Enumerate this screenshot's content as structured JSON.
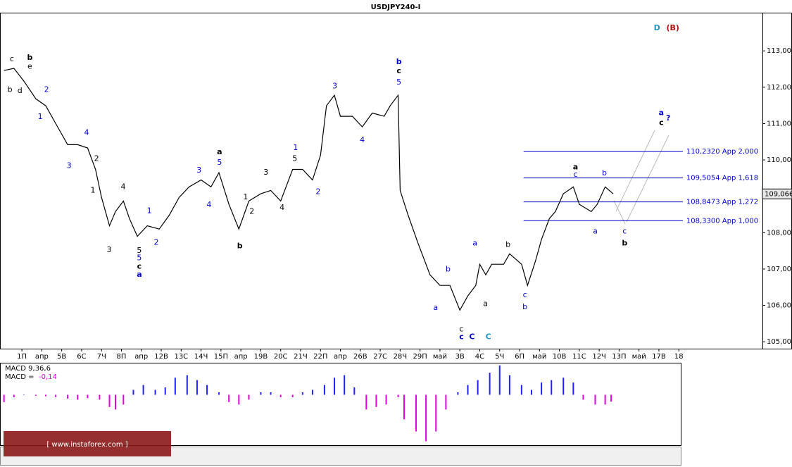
{
  "chart_data": [
    {
      "type": "line",
      "title": "USDJPY240-I",
      "x": [
        -0.9,
        -0.4,
        0.1,
        0.7,
        1.2,
        1.7,
        2.3,
        2.8,
        3.3,
        3.7,
        4.0,
        4.4,
        4.7,
        5.1,
        5.4,
        5.8,
        6.3,
        6.9,
        7.4,
        7.9,
        8.4,
        9.0,
        9.5,
        9.9,
        10.4,
        10.9,
        11.4,
        12.0,
        12.5,
        13.0,
        13.6,
        14.1,
        14.6,
        15.0,
        15.3,
        15.7,
        16.0,
        16.6,
        17.1,
        17.6,
        18.2,
        18.5,
        18.9,
        19.0,
        19.4,
        19.9,
        20.5,
        21.0,
        21.5,
        22.0,
        22.4,
        22.8,
        23.0,
        23.3,
        23.6,
        24.2,
        24.5,
        25.1,
        25.4,
        25.8,
        26.1,
        26.5,
        26.8,
        27.2,
        27.7,
        28.0,
        28.6,
        28.9,
        29.3,
        29.7
      ],
      "series": [
        {
          "name": "USDJPY240-I",
          "color": "#000000",
          "values": [
            112.46,
            112.52,
            112.17,
            111.68,
            111.49,
            111.0,
            110.42,
            110.42,
            110.33,
            109.74,
            108.97,
            108.19,
            108.58,
            108.87,
            108.39,
            107.9,
            108.19,
            108.1,
            108.48,
            108.97,
            109.26,
            109.45,
            109.26,
            109.65,
            108.78,
            108.1,
            108.87,
            109.07,
            109.16,
            108.87,
            109.74,
            109.74,
            109.45,
            110.13,
            111.49,
            111.78,
            111.2,
            111.2,
            110.91,
            111.29,
            111.2,
            111.49,
            111.78,
            109.16,
            108.48,
            107.71,
            106.84,
            106.55,
            106.55,
            105.87,
            106.26,
            106.55,
            107.13,
            106.84,
            107.13,
            107.13,
            107.42,
            107.13,
            106.55,
            107.22,
            107.81,
            108.39,
            108.58,
            109.07,
            109.26,
            108.78,
            108.58,
            108.78,
            109.26,
            109.07
          ]
        }
      ],
      "xlim": [
        -1.1,
        37.2
      ],
      "xticks": [
        {
          "value": 0,
          "label": "1П"
        },
        {
          "value": 1,
          "label": "апр"
        },
        {
          "value": 2,
          "label": "5В"
        },
        {
          "value": 3,
          "label": "6С"
        },
        {
          "value": 4,
          "label": "7Ч"
        },
        {
          "value": 5,
          "label": "8П"
        },
        {
          "value": 6,
          "label": "апр"
        },
        {
          "value": 7,
          "label": "12В"
        },
        {
          "value": 8,
          "label": "13С"
        },
        {
          "value": 9,
          "label": "14Ч"
        },
        {
          "value": 10,
          "label": "15П"
        },
        {
          "value": 11,
          "label": "апр"
        },
        {
          "value": 12,
          "label": "19В"
        },
        {
          "value": 13,
          "label": "20С"
        },
        {
          "value": 14,
          "label": "21Ч"
        },
        {
          "value": 15,
          "label": "22П"
        },
        {
          "value": 16,
          "label": "апр"
        },
        {
          "value": 17,
          "label": "26В"
        },
        {
          "value": 18,
          "label": "27С"
        },
        {
          "value": 19,
          "label": "28Ч"
        },
        {
          "value": 20,
          "label": "29П"
        },
        {
          "value": 21,
          "label": "май"
        },
        {
          "value": 22,
          "label": "3В"
        },
        {
          "value": 23,
          "label": "4С"
        },
        {
          "value": 24,
          "label": "5Ч"
        },
        {
          "value": 25,
          "label": "6П"
        },
        {
          "value": 26,
          "label": "май"
        },
        {
          "value": 27,
          "label": "10В"
        },
        {
          "value": 28,
          "label": "11С"
        },
        {
          "value": 29,
          "label": "12Ч"
        },
        {
          "value": 30,
          "label": "13П"
        },
        {
          "value": 31,
          "label": "май"
        },
        {
          "value": 32,
          "label": "17В"
        },
        {
          "value": 33,
          "label": "18"
        }
      ],
      "ylim": [
        104.81,
        114.05
      ],
      "yticks": [
        {
          "value": 105,
          "label": "105,000"
        },
        {
          "value": 106,
          "label": "106,000"
        },
        {
          "value": 107,
          "label": "107,000"
        },
        {
          "value": 108,
          "label": "108,000"
        },
        {
          "value": 109,
          "label": "109,000"
        },
        {
          "value": 110,
          "label": "110,000"
        },
        {
          "value": 111,
          "label": "111,000"
        },
        {
          "value": 112,
          "label": "112,000"
        },
        {
          "value": 113,
          "label": "113,000"
        }
      ],
      "last_price": {
        "value": 109.066,
        "label": "109,066"
      },
      "levels": {
        "color": "#0000cc",
        "x_start": 25.2,
        "x_end": 33.2,
        "items": [
          {
            "value": 110.232,
            "label": "110,2320 App 2,000"
          },
          {
            "value": 109.5054,
            "label": "109,5054 App 1,618"
          },
          {
            "value": 108.8473,
            "label": "108,8473 App 1,272"
          },
          {
            "value": 108.33,
            "label": "108,3300 App 1,000"
          }
        ]
      },
      "annotations": [
        {
          "text": "c",
          "x": -0.5,
          "y": 112.77,
          "color": "#000000",
          "bold": false
        },
        {
          "text": "b",
          "x": 0.4,
          "y": 112.81,
          "color": "#000000",
          "bold": true
        },
        {
          "text": "e",
          "x": 0.4,
          "y": 112.57,
          "color": "#000000",
          "bold": false
        },
        {
          "text": "b",
          "x": -0.6,
          "y": 111.93,
          "color": "#000000",
          "bold": false
        },
        {
          "text": "d",
          "x": -0.1,
          "y": 111.9,
          "color": "#000000",
          "bold": false
        },
        {
          "text": "2",
          "x": 1.24,
          "y": 111.93,
          "color": "#0000cc",
          "bold": false
        },
        {
          "text": "1",
          "x": 0.92,
          "y": 111.18,
          "color": "#0000cc",
          "bold": false
        },
        {
          "text": "4",
          "x": 3.25,
          "y": 110.75,
          "color": "#0000cc",
          "bold": false
        },
        {
          "text": "3",
          "x": 2.37,
          "y": 109.84,
          "color": "#0000cc",
          "bold": false
        },
        {
          "text": "2",
          "x": 3.75,
          "y": 110.03,
          "color": "#000000",
          "bold": false
        },
        {
          "text": "1",
          "x": 3.57,
          "y": 109.16,
          "color": "#000000",
          "bold": false
        },
        {
          "text": "4",
          "x": 5.09,
          "y": 109.26,
          "color": "#000000",
          "bold": false
        },
        {
          "text": "3",
          "x": 4.38,
          "y": 107.52,
          "color": "#000000",
          "bold": false
        },
        {
          "text": "1",
          "x": 6.4,
          "y": 108.6,
          "color": "#0000cc",
          "bold": false
        },
        {
          "text": "2",
          "x": 6.75,
          "y": 107.73,
          "color": "#0000cc",
          "bold": false
        },
        {
          "text": "5",
          "x": 5.9,
          "y": 107.5,
          "color": "#000000",
          "bold": false
        },
        {
          "text": "5",
          "x": 5.9,
          "y": 107.3,
          "color": "#0000cc",
          "bold": false
        },
        {
          "text": "c",
          "x": 5.9,
          "y": 107.07,
          "color": "#000000",
          "bold": true
        },
        {
          "text": "a",
          "x": 5.9,
          "y": 106.84,
          "color": "#0000cc",
          "bold": true
        },
        {
          "text": "a",
          "x": 9.93,
          "y": 110.21,
          "color": "#000000",
          "bold": true
        },
        {
          "text": "5",
          "x": 9.93,
          "y": 109.92,
          "color": "#0000cc",
          "bold": false
        },
        {
          "text": "3",
          "x": 8.9,
          "y": 109.71,
          "color": "#0000cc",
          "bold": false
        },
        {
          "text": "4",
          "x": 9.4,
          "y": 108.76,
          "color": "#0000cc",
          "bold": false
        },
        {
          "text": "b",
          "x": 10.95,
          "y": 107.63,
          "color": "#000000",
          "bold": true
        },
        {
          "text": "1",
          "x": 11.24,
          "y": 108.97,
          "color": "#000000",
          "bold": false
        },
        {
          "text": "2",
          "x": 11.55,
          "y": 108.58,
          "color": "#000000",
          "bold": false
        },
        {
          "text": "3",
          "x": 12.26,
          "y": 109.65,
          "color": "#000000",
          "bold": false
        },
        {
          "text": "4",
          "x": 13.07,
          "y": 108.68,
          "color": "#000000",
          "bold": false
        },
        {
          "text": "5",
          "x": 13.71,
          "y": 110.03,
          "color": "#000000",
          "bold": false
        },
        {
          "text": "1",
          "x": 13.75,
          "y": 110.33,
          "color": "#0000cc",
          "bold": false
        },
        {
          "text": "2",
          "x": 14.88,
          "y": 109.12,
          "color": "#0000cc",
          "bold": false
        },
        {
          "text": "3",
          "x": 15.72,
          "y": 112.03,
          "color": "#0000cc",
          "bold": false
        },
        {
          "text": "4",
          "x": 17.1,
          "y": 110.54,
          "color": "#0000cc",
          "bold": false
        },
        {
          "text": "b",
          "x": 18.94,
          "y": 112.69,
          "color": "#0000cc",
          "bold": true
        },
        {
          "text": "c",
          "x": 18.94,
          "y": 112.44,
          "color": "#000000",
          "bold": true
        },
        {
          "text": "5",
          "x": 18.94,
          "y": 112.13,
          "color": "#0000cc",
          "bold": false
        },
        {
          "text": "a",
          "x": 20.78,
          "y": 105.93,
          "color": "#0000cc",
          "bold": false
        },
        {
          "text": "b",
          "x": 21.41,
          "y": 106.99,
          "color": "#0000cc",
          "bold": false
        },
        {
          "text": "a",
          "x": 22.76,
          "y": 107.71,
          "color": "#0000cc",
          "bold": false
        },
        {
          "text": "a",
          "x": 23.29,
          "y": 106.04,
          "color": "#000000",
          "bold": false
        },
        {
          "text": "c",
          "x": 22.08,
          "y": 105.34,
          "color": "#000000",
          "bold": false
        },
        {
          "text": "c",
          "x": 22.08,
          "y": 105.13,
          "color": "#0000cc",
          "bold": true
        },
        {
          "text": "C",
          "x": 22.61,
          "y": 105.13,
          "color": "#0000cc",
          "bold": true
        },
        {
          "text": "C",
          "x": 23.43,
          "y": 105.13,
          "color": "#1e96c8",
          "bold": true
        },
        {
          "text": "b",
          "x": 24.42,
          "y": 107.67,
          "color": "#000000",
          "bold": false
        },
        {
          "text": "c",
          "x": 25.27,
          "y": 106.28,
          "color": "#0000cc",
          "bold": false
        },
        {
          "text": "b",
          "x": 25.27,
          "y": 105.95,
          "color": "#0000cc",
          "bold": false
        },
        {
          "text": "a",
          "x": 27.81,
          "y": 109.8,
          "color": "#000000",
          "bold": true
        },
        {
          "text": "c",
          "x": 27.81,
          "y": 109.59,
          "color": "#0000cc",
          "bold": false
        },
        {
          "text": "b",
          "x": 29.26,
          "y": 109.63,
          "color": "#0000cc",
          "bold": false
        },
        {
          "text": "a",
          "x": 28.8,
          "y": 108.04,
          "color": "#0000cc",
          "bold": false
        },
        {
          "text": "c",
          "x": 30.28,
          "y": 108.04,
          "color": "#0000cc",
          "bold": false
        },
        {
          "text": "b",
          "x": 30.28,
          "y": 107.71,
          "color": "#000000",
          "bold": true
        },
        {
          "text": "a",
          "x": 32.12,
          "y": 111.29,
          "color": "#0000cc",
          "bold": true
        },
        {
          "text": "c",
          "x": 32.12,
          "y": 111.02,
          "color": "#000000",
          "bold": true
        },
        {
          "text": "?",
          "x": 32.47,
          "y": 111.14,
          "color": "#0000cc",
          "bold": true
        },
        {
          "text": "D",
          "x": 31.9,
          "y": 113.62,
          "color": "#1e96c8",
          "bold": true
        },
        {
          "text": "(B)",
          "x": 32.7,
          "y": 113.62,
          "color": "#b01010",
          "bold": true
        }
      ]
    },
    {
      "type": "histogram-bars",
      "title": "MACD 9,36,6",
      "current_prefix": "MACD =",
      "current_value": "-0,14",
      "x": [
        -0.9,
        -0.4,
        0.1,
        0.7,
        1.2,
        1.7,
        2.3,
        2.8,
        3.3,
        3.9,
        4.4,
        4.7,
        5.1,
        5.6,
        6.1,
        6.7,
        7.2,
        7.7,
        8.3,
        8.8,
        9.3,
        9.9,
        10.4,
        10.9,
        11.4,
        12.0,
        12.5,
        13.0,
        13.6,
        14.1,
        14.6,
        15.2,
        15.7,
        16.2,
        16.7,
        17.3,
        17.8,
        18.3,
        18.9,
        19.2,
        19.8,
        20.3,
        20.8,
        21.3,
        21.9,
        22.4,
        22.9,
        23.5,
        24.0,
        24.5,
        25.1,
        25.6,
        26.1,
        26.6,
        27.2,
        27.7,
        28.2,
        28.8,
        29.3,
        29.6
      ],
      "values": [
        -0.15,
        -0.05,
        0,
        -0.02,
        -0.03,
        -0.05,
        -0.08,
        -0.1,
        -0.07,
        -0.1,
        -0.25,
        -0.3,
        -0.2,
        0.1,
        0.2,
        0.1,
        0.15,
        0.35,
        0.4,
        0.3,
        0.2,
        0.05,
        -0.15,
        -0.2,
        -0.1,
        0.05,
        0.05,
        -0.05,
        -0.05,
        0.05,
        0.1,
        0.2,
        0.35,
        0.4,
        0.15,
        -0.3,
        -0.25,
        -0.2,
        -0.05,
        -0.5,
        -0.75,
        -0.95,
        -0.75,
        -0.3,
        0.05,
        0.2,
        0.3,
        0.45,
        0.6,
        0.4,
        0.2,
        0.1,
        0.25,
        0.3,
        0.35,
        0.25,
        -0.1,
        -0.2,
        -0.2,
        -0.14
      ],
      "ylim": [
        -1.03,
        0.64
      ],
      "color_up": "#2020ff",
      "color_down": "#e000e0"
    }
  ],
  "watermark": "[ www.instaforex.com ]"
}
